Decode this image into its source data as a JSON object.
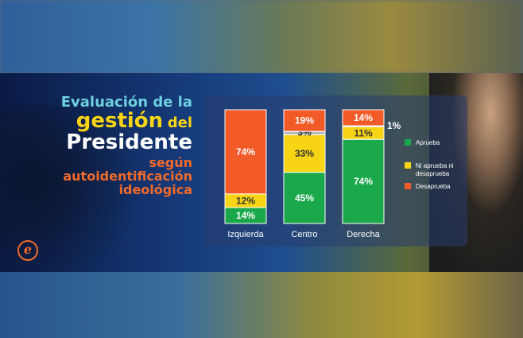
{
  "title": {
    "line1": "Evaluación de la",
    "line2a": "gestión",
    "line2b": "del",
    "line3": "Presidente",
    "line4": "según",
    "line5": "autoidentificación",
    "line6": "ideológica"
  },
  "logo": {
    "letter": "e"
  },
  "colors": {
    "aprueba": "#1aa84a",
    "ni": "#f7d414",
    "desaprueba": "#f25a28",
    "gray": "#b9b9b9"
  },
  "chart_data": {
    "type": "bar",
    "stacked": true,
    "categories": [
      "Izquierda",
      "Centro",
      "Derecha"
    ],
    "series": [
      {
        "name": "Aprueba",
        "values": [
          14,
          45,
          74
        ],
        "labels": [
          "14%",
          "45%",
          "74%"
        ]
      },
      {
        "name": "Ni aprueba ni desaprueba",
        "values": [
          12,
          33,
          11
        ],
        "labels": [
          "12%",
          "33%",
          "11%"
        ]
      },
      {
        "name": "",
        "values": [
          0,
          3,
          1
        ],
        "labels": [
          "",
          "3%",
          "1%"
        ]
      },
      {
        "name": "Desaprueba",
        "values": [
          74,
          19,
          14
        ],
        "labels": [
          "74%",
          "19%",
          "14%"
        ]
      }
    ],
    "legend": [
      "Aprueba",
      "Ni aprueba ni desaprueba",
      "Desaprueba"
    ],
    "ylim": [
      0,
      100
    ],
    "legend_position": "right"
  }
}
